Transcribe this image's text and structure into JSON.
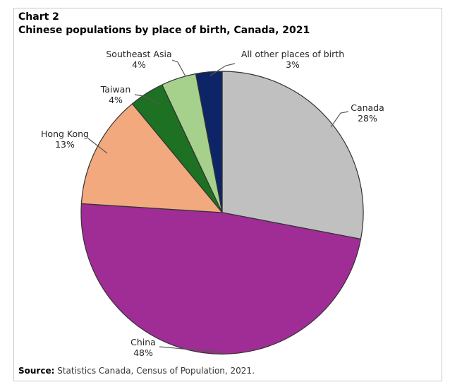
{
  "header": {
    "chart_number": "Chart 2",
    "title": "Chinese populations by place of birth, Canada, 2021"
  },
  "footer": {
    "source_label": "Source:",
    "source_text": " Statistics Canada, Census of Population, 2021."
  },
  "chart_data": {
    "type": "pie",
    "title": "Chinese populations by place of birth, Canada, 2021",
    "categories": [
      "Canada",
      "China",
      "Hong Kong",
      "Taiwan",
      "Southeast Asia",
      "All other places of birth"
    ],
    "values": [
      28,
      48,
      13,
      4,
      4,
      3
    ],
    "unit": "percent",
    "value_labels": [
      "28%",
      "48%",
      "13%",
      "4%",
      "4%",
      "3%"
    ],
    "colors": [
      "#c0c0c0",
      "#a02c96",
      "#f2a97e",
      "#1e7023",
      "#a5d18c",
      "#0d2566"
    ],
    "start_angle": "12 o'clock",
    "direction": "clockwise",
    "outline_color": "#333333",
    "leader_line_color": "#595959",
    "legend": "none; direct labels with leader lines"
  }
}
